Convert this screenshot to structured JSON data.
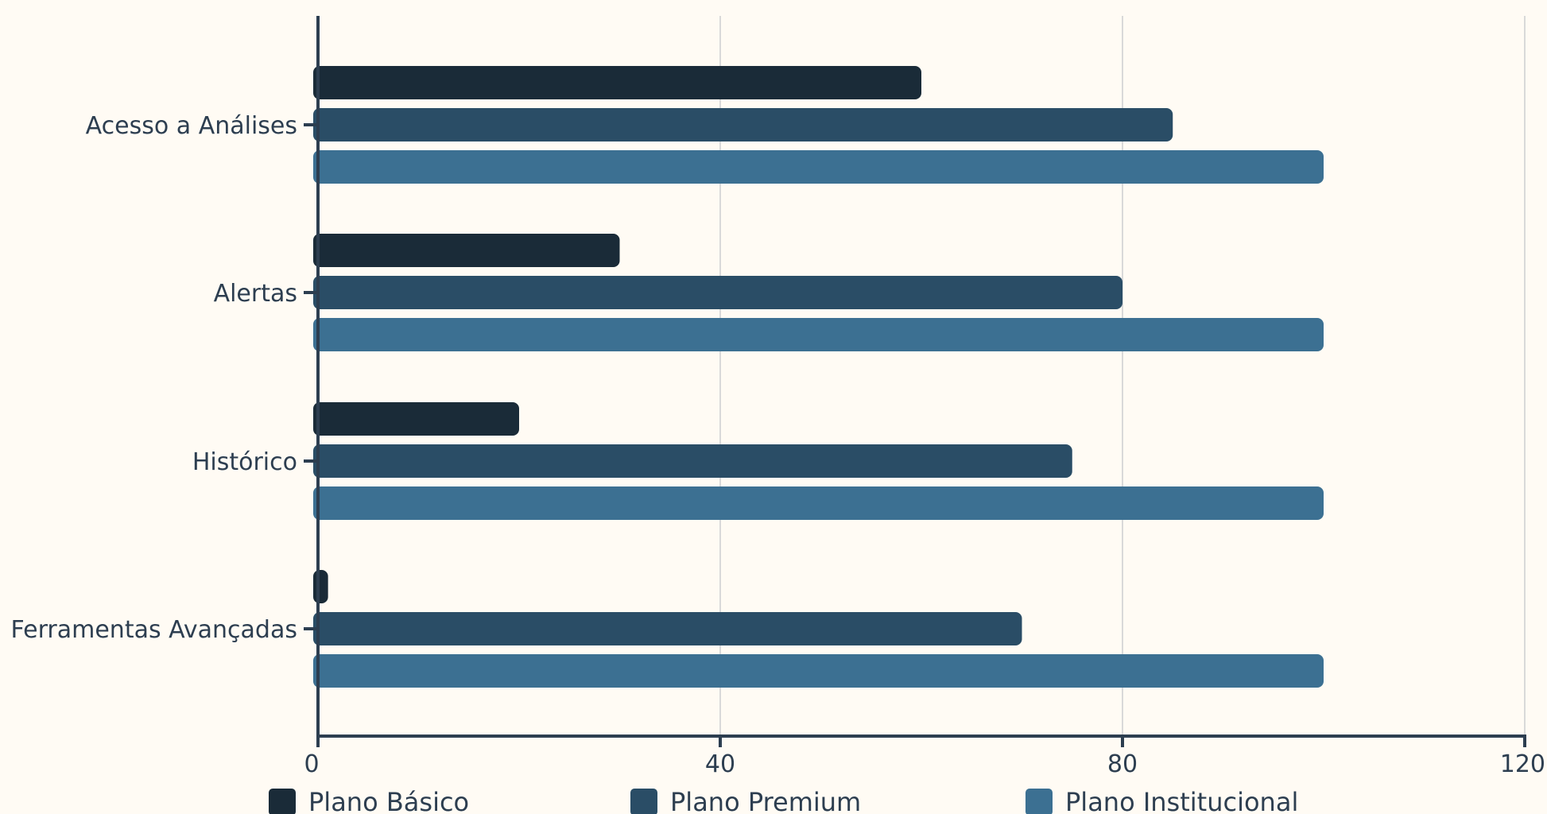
{
  "chart_data": {
    "type": "bar",
    "orientation": "horizontal",
    "categories": [
      "Acesso a Análises",
      "Alertas",
      "Histórico",
      "Ferramentas Avançadas"
    ],
    "series": [
      {
        "name": "Plano Básico",
        "color": "#1a2b38",
        "values": [
          60,
          30,
          20,
          1
        ]
      },
      {
        "name": "Plano Premium",
        "color": "#2a4d66",
        "values": [
          85,
          80,
          75,
          70
        ]
      },
      {
        "name": "Plano Institucional",
        "color": "#3c7092",
        "values": [
          100,
          100,
          100,
          100
        ]
      }
    ],
    "xlim": [
      0,
      120
    ],
    "xticks": [
      "0",
      "40",
      "80",
      "120"
    ],
    "grid": true,
    "legend_position": "bottom"
  }
}
